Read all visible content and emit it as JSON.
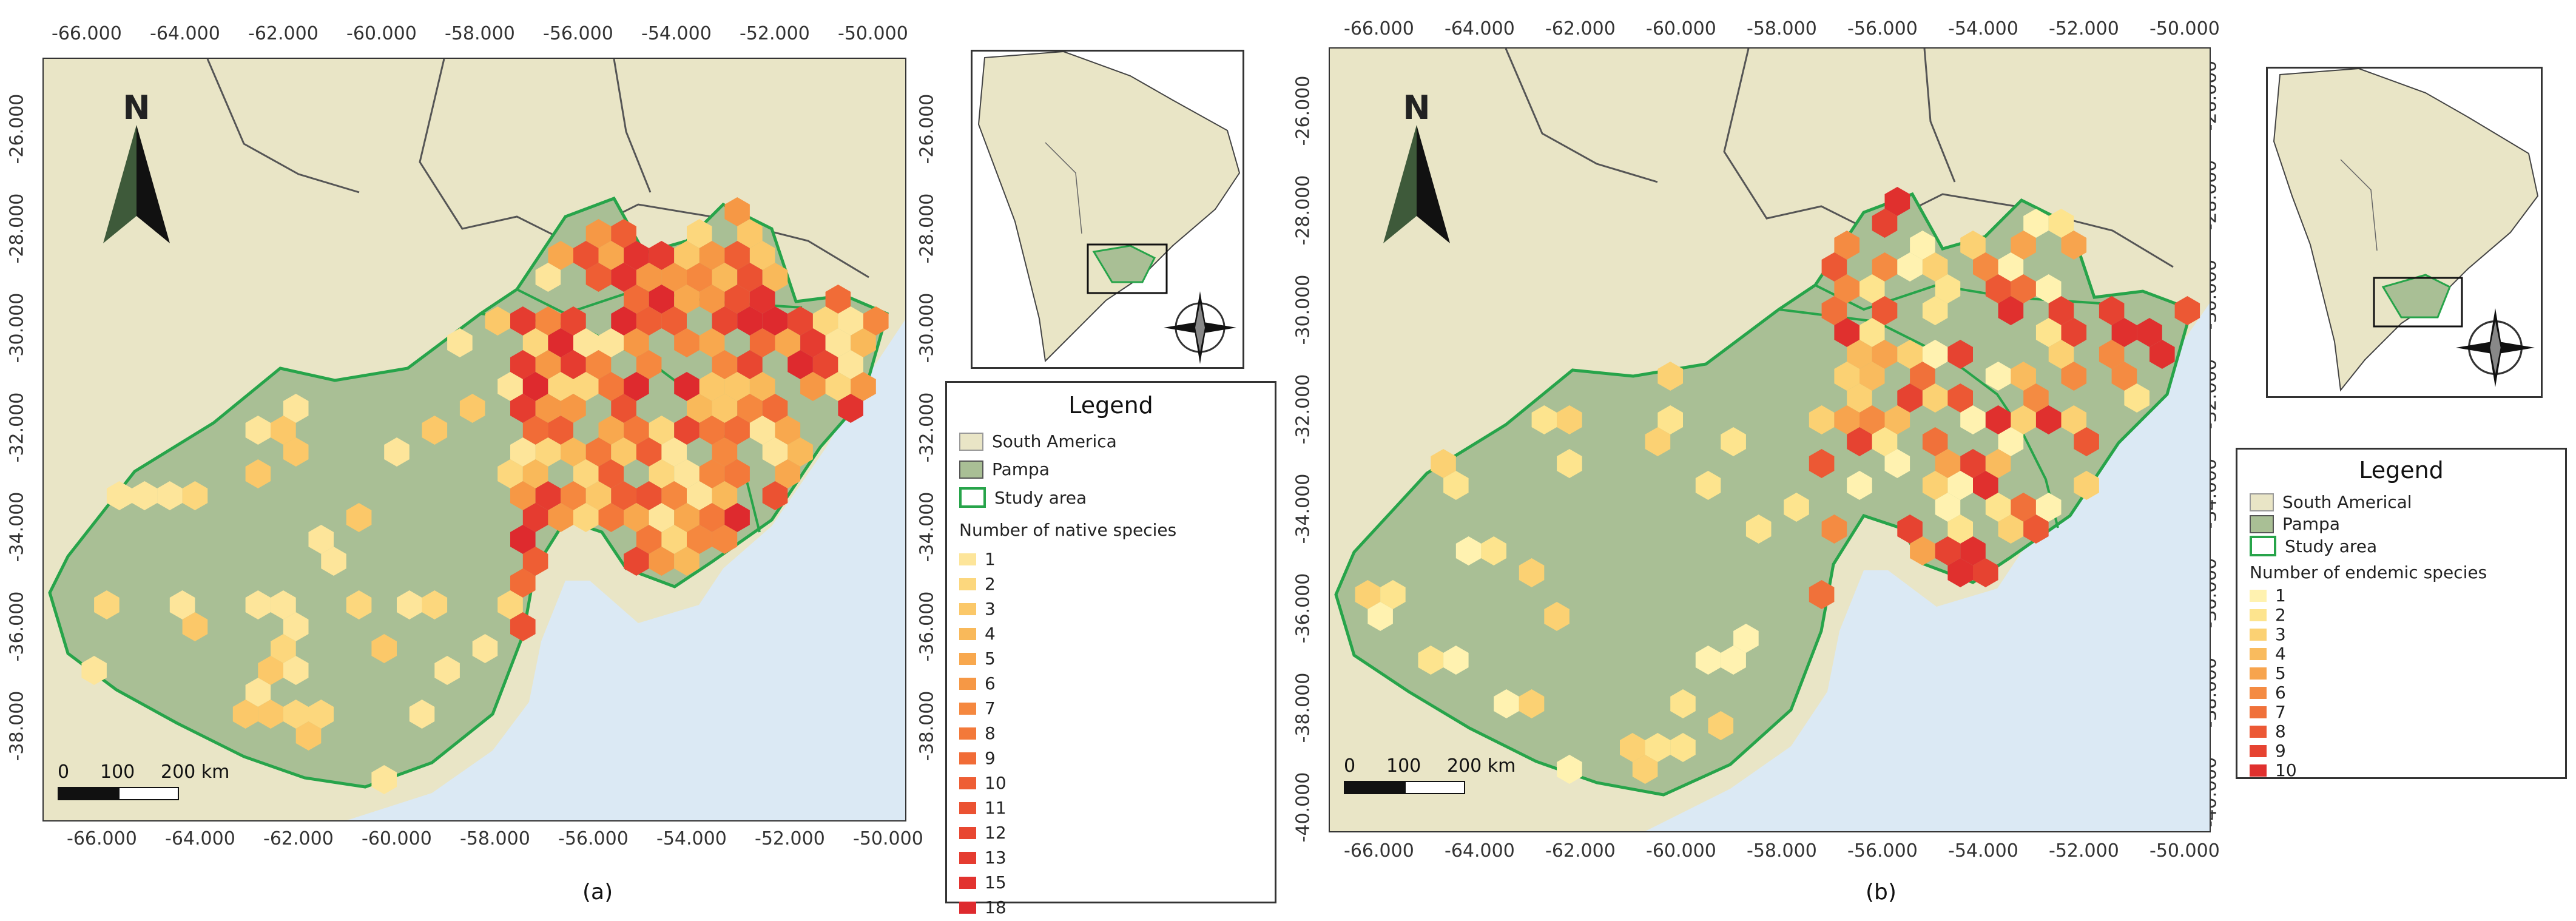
{
  "panels": [
    {
      "caption": "(a)",
      "x_ticks": [
        "-66.000",
        "-64.000",
        "-62.000",
        "-60.000",
        "-58.000",
        "-56.000",
        "-54.000",
        "-52.000",
        "-50.000"
      ],
      "y_ticks": [
        "-26.000",
        "-28.000",
        "-30.000",
        "-32.000",
        "-34.000",
        "-36.000",
        "-38.000"
      ],
      "north": "N",
      "scale": {
        "zero": "0",
        "mid": "100",
        "end": "200 km"
      },
      "legend": {
        "title": "Legend",
        "layers": [
          "South America",
          "Pampa",
          "Study area"
        ],
        "subtitle": "Number of native species",
        "classes": [
          "1",
          "2",
          "3",
          "4",
          "5",
          "6",
          "7",
          "8",
          "9",
          "10",
          "11",
          "12",
          "13",
          "15",
          "18"
        ],
        "class_colors": [
          "#fde59a",
          "#fcd77d",
          "#fbc869",
          "#f9b95a",
          "#f8a84e",
          "#f69845",
          "#f5883f",
          "#f3793a",
          "#f16c37",
          "#ee5e34",
          "#eb5232",
          "#e84731",
          "#e53c30",
          "#e2332f",
          "#de2a2e"
        ]
      }
    },
    {
      "caption": "(b)",
      "x_ticks": [
        "-66.000",
        "-64.000",
        "-62.000",
        "-60.000",
        "-58.000",
        "-56.000",
        "-54.000",
        "-52.000",
        "-50.000"
      ],
      "y_ticks": [
        "-26.000",
        "-28.000",
        "-30.000",
        "-32.000",
        "-34.000",
        "-36.000",
        "-38.000",
        "-40.000"
      ],
      "north": "N",
      "scale": {
        "zero": "0",
        "mid": "100",
        "end": "200 km"
      },
      "legend": {
        "title": "Legend",
        "layers": [
          "South Americal",
          "Pampa",
          "Study area"
        ],
        "subtitle": "Number of endemic species",
        "classes": [
          "1",
          "2",
          "3",
          "4",
          "5",
          "6",
          "7",
          "8",
          "9",
          "10"
        ],
        "class_colors": [
          "#fff2b0",
          "#fde48e",
          "#fbd173",
          "#f9bb5e",
          "#f7a44e",
          "#f48b42",
          "#f0713a",
          "#ec5834",
          "#e64331",
          "#e0302e"
        ]
      }
    }
  ],
  "colors": {
    "ocean": "#dbe9f4",
    "land": "#e9e5c6",
    "pampa": "#a9bf95",
    "study_border": "#27a44a"
  }
}
